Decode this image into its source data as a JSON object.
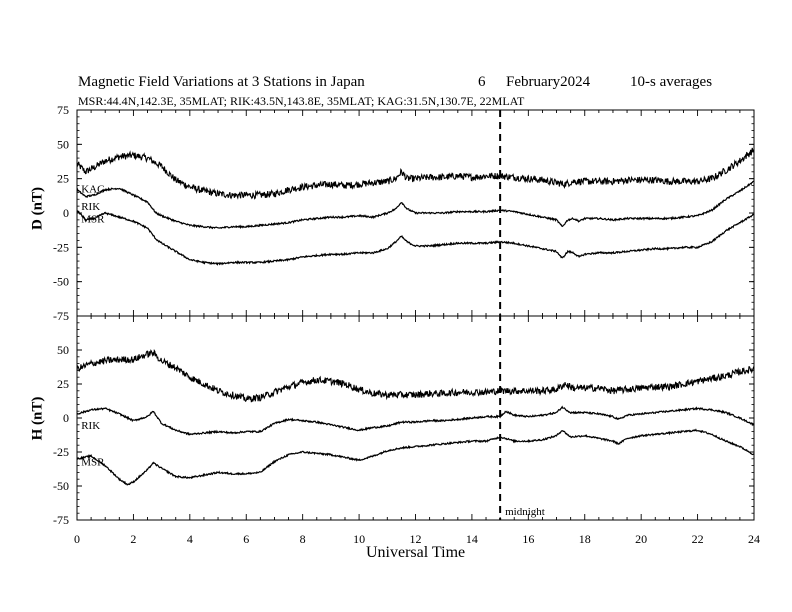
{
  "title": {
    "main": "Magnetic Field Variations at 3 Stations in Japan",
    "day": "6",
    "month_year": "February2024",
    "averaging": "10-s averages"
  },
  "subtitle": "MSR:44.4N,142.3E, 35MLAT;  RIK:43.5N,143.8E, 35MLAT;  KAG:31.5N,130.7E, 22MLAT",
  "chart_data": {
    "type": "line",
    "xlabel": "Universal Time",
    "xlim": [
      0,
      24
    ],
    "x_ticks": [
      "0",
      "2",
      "4",
      "6",
      "8",
      "10",
      "12",
      "14",
      "16",
      "18",
      "20",
      "22",
      "24"
    ],
    "marker": {
      "x": 15,
      "label": "midnight",
      "style": "dashed"
    },
    "panels": [
      {
        "ylabel": "D (nT)",
        "ylim": [
          -75,
          75
        ],
        "y_ticks": [
          "75",
          "50",
          "25",
          "0",
          "-25",
          "-50",
          "-75"
        ],
        "series": [
          {
            "name": "KAG",
            "noise": 2.5,
            "x": [
              0,
              0.3,
              0.6,
              1,
              1.5,
              2,
              2.5,
              3,
              3.5,
              4,
              4.5,
              5,
              5.5,
              6,
              6.5,
              7,
              7.5,
              8,
              8.5,
              9,
              9.5,
              10,
              10.5,
              11,
              11.3,
              11.5,
              11.7,
              12,
              12.5,
              13,
              13.5,
              14,
              14.5,
              15,
              15.5,
              16,
              16.5,
              17,
              17.3,
              17.6,
              18,
              18.5,
              19,
              19.5,
              20,
              20.5,
              21,
              21.5,
              22,
              22.5,
              23,
              23.5,
              24
            ],
            "y": [
              36,
              30,
              33,
              38,
              41,
              42,
              40,
              34,
              24,
              19,
              16,
              14,
              13,
              13,
              13,
              14,
              17,
              19,
              20,
              21,
              20,
              21,
              22,
              23,
              25,
              30,
              25,
              25,
              26,
              26,
              27,
              26,
              27,
              27,
              26,
              25,
              24,
              22,
              21,
              23,
              23,
              23,
              23,
              24,
              24,
              24,
              23,
              23,
              23,
              25,
              31,
              38,
              46
            ]
          },
          {
            "name": "RIK",
            "noise": 0.6,
            "x": [
              0,
              0.3,
              0.6,
              1,
              1.5,
              2,
              2.5,
              2.8,
              3,
              3.5,
              4,
              4.5,
              5,
              5.5,
              6,
              6.5,
              7,
              7.5,
              8,
              8.5,
              9,
              9.5,
              10,
              10.5,
              11,
              11.3,
              11.5,
              11.7,
              12,
              12.5,
              13,
              13.5,
              14,
              14.5,
              15,
              15.5,
              16,
              16.5,
              17,
              17.2,
              17.4,
              17.6,
              17.8,
              18,
              18.5,
              19,
              19.5,
              20,
              20.5,
              21,
              21.5,
              22,
              22.5,
              23,
              23.5,
              24
            ],
            "y": [
              17,
              12,
              13,
              17,
              18,
              13,
              8,
              0,
              -2,
              -6,
              -9,
              -10,
              -11,
              -10,
              -10,
              -9,
              -8,
              -7,
              -5,
              -4,
              -3,
              -3,
              -2,
              -3,
              0,
              3,
              8,
              3,
              0,
              0,
              0,
              1,
              1,
              1,
              2,
              1,
              -1,
              -3,
              -5,
              -10,
              -5,
              -4,
              -6,
              -4,
              -4,
              -5,
              -4,
              -4,
              -4,
              -4,
              -3,
              -2,
              2,
              10,
              16,
              23
            ]
          },
          {
            "name": "MSR",
            "noise": 0.6,
            "x": [
              0,
              0.3,
              0.6,
              1,
              1.5,
              2,
              2.5,
              2.8,
              3,
              3.5,
              4,
              4.5,
              5,
              5.5,
              6,
              6.5,
              7,
              7.5,
              8,
              8.5,
              9,
              9.5,
              10,
              10.5,
              11,
              11.3,
              11.5,
              11.7,
              12,
              12.5,
              13,
              13.5,
              14,
              14.5,
              15,
              15.5,
              16,
              16.5,
              17,
              17.2,
              17.4,
              17.6,
              17.8,
              18,
              18.5,
              19,
              19.5,
              20,
              20.5,
              21,
              21.5,
              22,
              22.5,
              23,
              23.5,
              24
            ],
            "y": [
              2,
              -5,
              -4,
              0,
              -3,
              -6,
              -11,
              -19,
              -22,
              -28,
              -34,
              -36,
              -37,
              -36,
              -36,
              -36,
              -35,
              -34,
              -32,
              -31,
              -30,
              -30,
              -29,
              -29,
              -26,
              -21,
              -17,
              -21,
              -24,
              -24,
              -23,
              -22,
              -22,
              -22,
              -21,
              -22,
              -24,
              -26,
              -28,
              -33,
              -28,
              -29,
              -32,
              -30,
              -29,
              -29,
              -28,
              -27,
              -26,
              -26,
              -25,
              -25,
              -21,
              -13,
              -7,
              -1
            ]
          }
        ],
        "annotations": [
          {
            "text": "KAG",
            "x": 0.15,
            "y": 18,
            "dy": 0
          },
          {
            "text": "RIK",
            "x": 0.15,
            "y": 5,
            "dy": 0
          },
          {
            "text": "MSR",
            "x": 0.15,
            "y": -4,
            "dy": 0
          }
        ]
      },
      {
        "ylabel": "H (nT)",
        "ylim": [
          -75,
          75
        ],
        "y_ticks": [
          "75",
          "50",
          "25",
          "0",
          "-25",
          "-50",
          "-75"
        ],
        "series": [
          {
            "name": "KAG",
            "noise": 2.5,
            "x": [
              0,
              0.5,
              1,
              1.5,
              2,
              2.5,
              2.7,
              3,
              3.5,
              4,
              4.5,
              5,
              5.5,
              6,
              6.5,
              7,
              7.5,
              8,
              8.5,
              9,
              9.5,
              10,
              10.5,
              11,
              11.5,
              12,
              12.5,
              13,
              13.5,
              14,
              14.5,
              15,
              15.5,
              16,
              16.5,
              17,
              17.3,
              17.6,
              18,
              18.5,
              19,
              19.5,
              20,
              20.5,
              21,
              21.5,
              22,
              22.5,
              23,
              23.5,
              24
            ],
            "y": [
              36,
              40,
              42,
              43,
              43,
              47,
              48,
              42,
              37,
              30,
              25,
              20,
              17,
              14,
              15,
              19,
              23,
              26,
              28,
              27,
              25,
              21,
              18,
              17,
              17,
              17,
              18,
              18,
              19,
              19,
              19,
              20,
              20,
              20,
              20,
              21,
              25,
              22,
              22,
              22,
              20,
              21,
              22,
              23,
              23,
              25,
              27,
              29,
              31,
              34,
              36
            ]
          },
          {
            "name": "RIK",
            "noise": 0.6,
            "x": [
              0,
              0.5,
              1,
              1.5,
              2,
              2.5,
              2.7,
              3,
              3.5,
              4,
              4.5,
              5,
              5.5,
              6,
              6.5,
              7,
              7.5,
              8,
              8.5,
              9,
              9.5,
              10,
              10.5,
              11,
              11.5,
              12,
              12.5,
              13,
              13.5,
              14,
              14.5,
              15,
              15.2,
              15.5,
              16,
              16.5,
              17,
              17.2,
              17.5,
              18,
              18.5,
              19,
              19.2,
              19.5,
              20,
              20.5,
              21,
              21.5,
              22,
              22.5,
              23,
              23.5,
              24
            ],
            "y": [
              3,
              6,
              7,
              3,
              -2,
              1,
              5,
              -4,
              -9,
              -12,
              -11,
              -10,
              -11,
              -10,
              -10,
              -4,
              -1,
              -2,
              -3,
              -5,
              -7,
              -9,
              -7,
              -6,
              -3,
              -3,
              -2,
              -2,
              -1,
              0,
              1,
              1,
              5,
              2,
              1,
              2,
              4,
              8,
              4,
              4,
              3,
              1,
              -1,
              2,
              3,
              4,
              5,
              6,
              7,
              6,
              4,
              0,
              -5
            ]
          },
          {
            "name": "MSR",
            "noise": 0.6,
            "x": [
              0,
              0.5,
              1,
              1.5,
              1.8,
              2,
              2.5,
              2.7,
              3,
              3.5,
              4,
              4.5,
              5,
              5.5,
              6,
              6.5,
              7,
              7.5,
              8,
              8.5,
              9,
              9.5,
              10,
              10.5,
              11,
              11.5,
              12,
              12.5,
              13,
              13.5,
              14,
              14.5,
              15,
              15.2,
              15.5,
              16,
              16.5,
              17,
              17.2,
              17.5,
              18,
              18.5,
              19,
              19.2,
              19.5,
              20,
              20.5,
              21,
              21.5,
              22,
              22.5,
              23,
              23.5,
              24
            ],
            "y": [
              -30,
              -28,
              -35,
              -45,
              -49,
              -47,
              -38,
              -33,
              -37,
              -43,
              -44,
              -42,
              -40,
              -41,
              -41,
              -40,
              -32,
              -27,
              -25,
              -26,
              -27,
              -29,
              -31,
              -28,
              -24,
              -22,
              -21,
              -20,
              -19,
              -18,
              -17,
              -17,
              -14,
              -15,
              -17,
              -17,
              -16,
              -13,
              -9,
              -14,
              -13,
              -15,
              -17,
              -19,
              -15,
              -13,
              -12,
              -11,
              -10,
              -9,
              -12,
              -17,
              -21,
              -27
            ]
          }
        ],
        "annotations": [
          {
            "text": "RIK",
            "x": 0.15,
            "y": -5,
            "dy": 0
          },
          {
            "text": "MSR",
            "x": 0.15,
            "y": -32,
            "dy": 0
          }
        ]
      }
    ]
  }
}
